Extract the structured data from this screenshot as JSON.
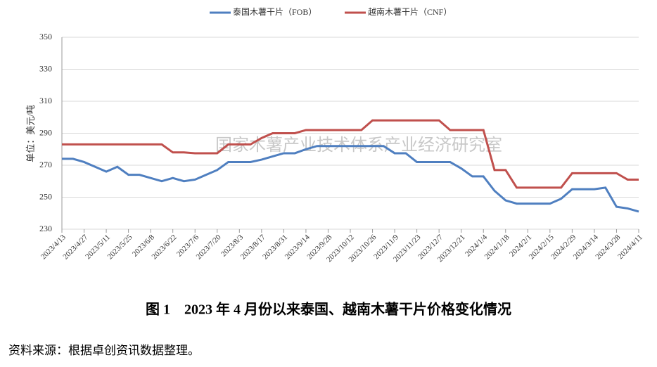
{
  "chart_data": {
    "type": "line",
    "y_axis_label": "单位：美元/吨",
    "watermark": "国家木薯产业技术体系产业经济研究室",
    "caption": "图 1　2023 年 4 月份以来泰国、越南木薯干片价格变化情况",
    "source": "资料来源：根据卓创资讯数据整理。",
    "categories": [
      "2023/4/13",
      null,
      "2023/4/27",
      null,
      "2023/5/11",
      null,
      "2023/5/25",
      null,
      "2023/6/8",
      null,
      "2023/6/22",
      null,
      "2023/7/6",
      null,
      "2023/7/20",
      null,
      "2023/8/3",
      null,
      "2023/8/17",
      null,
      "2023/8/31",
      null,
      "2023/9/14",
      null,
      "2023/9/28",
      null,
      "2023/10/12",
      null,
      "2023/10/26",
      null,
      "2023/11/9",
      null,
      "2023/11/23",
      null,
      "2023/12/7",
      null,
      "2023/12/21",
      null,
      "2024/1/4",
      null,
      "2024/1/18",
      null,
      "2024/2/1",
      null,
      "2024/2/15",
      null,
      "2024/2/29",
      null,
      "2024/3/14",
      null,
      "2024/3/28",
      null,
      "2024/4/11"
    ],
    "series": [
      {
        "name": "泰国木薯干片（FOB）",
        "color": "#4f7fc0",
        "values": [
          274,
          274,
          272,
          269,
          266,
          269,
          264,
          264,
          262,
          260,
          262,
          260,
          261,
          264,
          267,
          272,
          272,
          272,
          273.5,
          275.5,
          277.5,
          277.5,
          280,
          282,
          282,
          282,
          282,
          282,
          282,
          282,
          277.5,
          277.5,
          272,
          272,
          272,
          272,
          268,
          263,
          263,
          254,
          248,
          246,
          246,
          246,
          246,
          249,
          255,
          255,
          255,
          256,
          244,
          243,
          241
        ]
      },
      {
        "name": "越南木薯干片（CNF）",
        "color": "#c0504d",
        "values": [
          283,
          283,
          283,
          283,
          283,
          283,
          283,
          283,
          283,
          283,
          278,
          278,
          277.5,
          277.5,
          277.5,
          283,
          283,
          283,
          287,
          290,
          290,
          290,
          292,
          292,
          292,
          292,
          292,
          292,
          298,
          298,
          298,
          298,
          298,
          298,
          298,
          292,
          292,
          292,
          292,
          267,
          267,
          256,
          256,
          256,
          256,
          256,
          265,
          265,
          265,
          265,
          265,
          261,
          261
        ]
      }
    ],
    "ylim": [
      230,
      350
    ],
    "yticks": [
      230,
      250,
      270,
      290,
      310,
      330,
      350
    ],
    "grid": true,
    "legend": "top"
  }
}
